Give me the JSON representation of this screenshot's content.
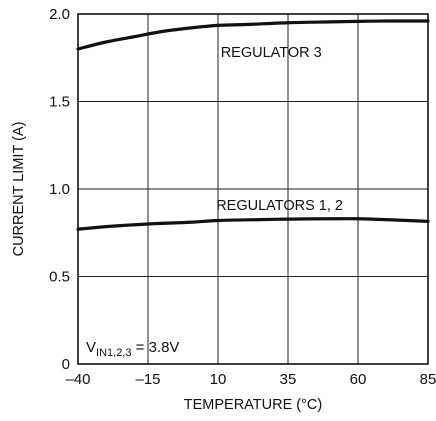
{
  "chart_data": {
    "type": "line",
    "xlabel": "TEMPERATURE (°C)",
    "ylabel": "CURRENT LIMIT (A)",
    "xlim": [
      -40,
      85
    ],
    "ylim": [
      0,
      2.0
    ],
    "x_ticks": [
      -40,
      -15,
      10,
      35,
      60,
      85
    ],
    "x_tick_labels": [
      "–40",
      "–15",
      "10",
      "35",
      "60",
      "85"
    ],
    "y_ticks": [
      0,
      0.5,
      1.0,
      1.5,
      2.0
    ],
    "y_tick_labels": [
      "0",
      "0.5",
      "1.0",
      "1.5",
      "2.0"
    ],
    "grid": true,
    "series": [
      {
        "name": "REGULATOR 3",
        "x": [
          -40,
          -30,
          -20,
          -10,
          0,
          10,
          20,
          35,
          50,
          60,
          70,
          85
        ],
        "y": [
          1.8,
          1.84,
          1.87,
          1.9,
          1.92,
          1.935,
          1.94,
          1.95,
          1.955,
          1.958,
          1.96,
          1.96
        ]
      },
      {
        "name": "REGULATORS 1, 2",
        "x": [
          -40,
          -30,
          -15,
          0,
          10,
          25,
          35,
          50,
          60,
          70,
          85
        ],
        "y": [
          0.77,
          0.785,
          0.8,
          0.81,
          0.82,
          0.825,
          0.828,
          0.83,
          0.83,
          0.825,
          0.815
        ]
      }
    ],
    "annotation": {
      "prefix": "V",
      "subscript": "IN1,2,3",
      "suffix": " = 3.8V"
    }
  }
}
